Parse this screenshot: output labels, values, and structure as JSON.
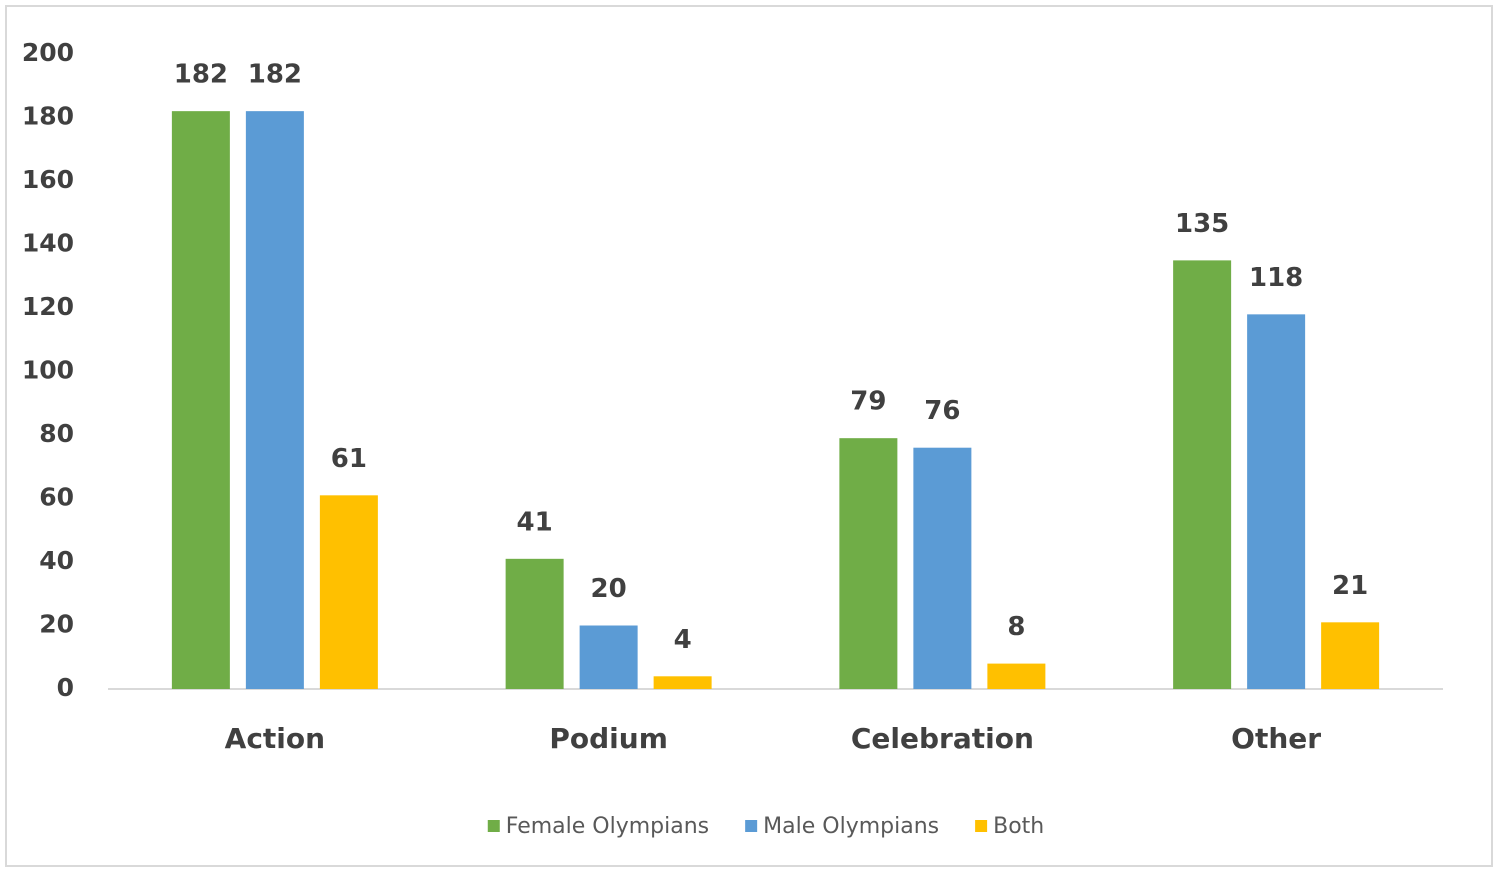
{
  "chart_data": {
    "type": "bar",
    "categories": [
      "Action",
      "Podium",
      "Celebration",
      "Other"
    ],
    "series": [
      {
        "name": "Female Olympians",
        "color": "#70ad47",
        "values": [
          182,
          41,
          79,
          135
        ]
      },
      {
        "name": "Male Olympians",
        "color": "#5b9bd5",
        "values": [
          182,
          20,
          76,
          118
        ]
      },
      {
        "name": "Both",
        "color": "#ffc000",
        "values": [
          61,
          4,
          8,
          21
        ]
      }
    ],
    "ylim": [
      0,
      200
    ],
    "yticks": [
      0,
      20,
      40,
      60,
      80,
      100,
      120,
      140,
      160,
      180,
      200
    ],
    "grid": false,
    "legend": "bottom"
  }
}
